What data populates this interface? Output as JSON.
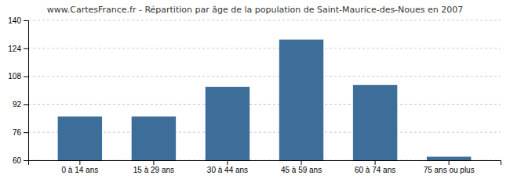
{
  "chart_data": {
    "type": "bar",
    "title": "www.CartesFrance.fr - Répartition par âge de la population de Saint-Maurice-des-Noues en 2007",
    "categories": [
      "0 à 14 ans",
      "15 à 29 ans",
      "30 à 44 ans",
      "45 à 59 ans",
      "60 à 74 ans",
      "75 ans ou plus"
    ],
    "values": [
      85,
      85,
      102,
      129,
      103,
      62
    ],
    "color": "#3d6e99",
    "ylim": [
      60,
      140
    ],
    "yticks": [
      60,
      76,
      92,
      108,
      124,
      140
    ],
    "grid": true
  }
}
